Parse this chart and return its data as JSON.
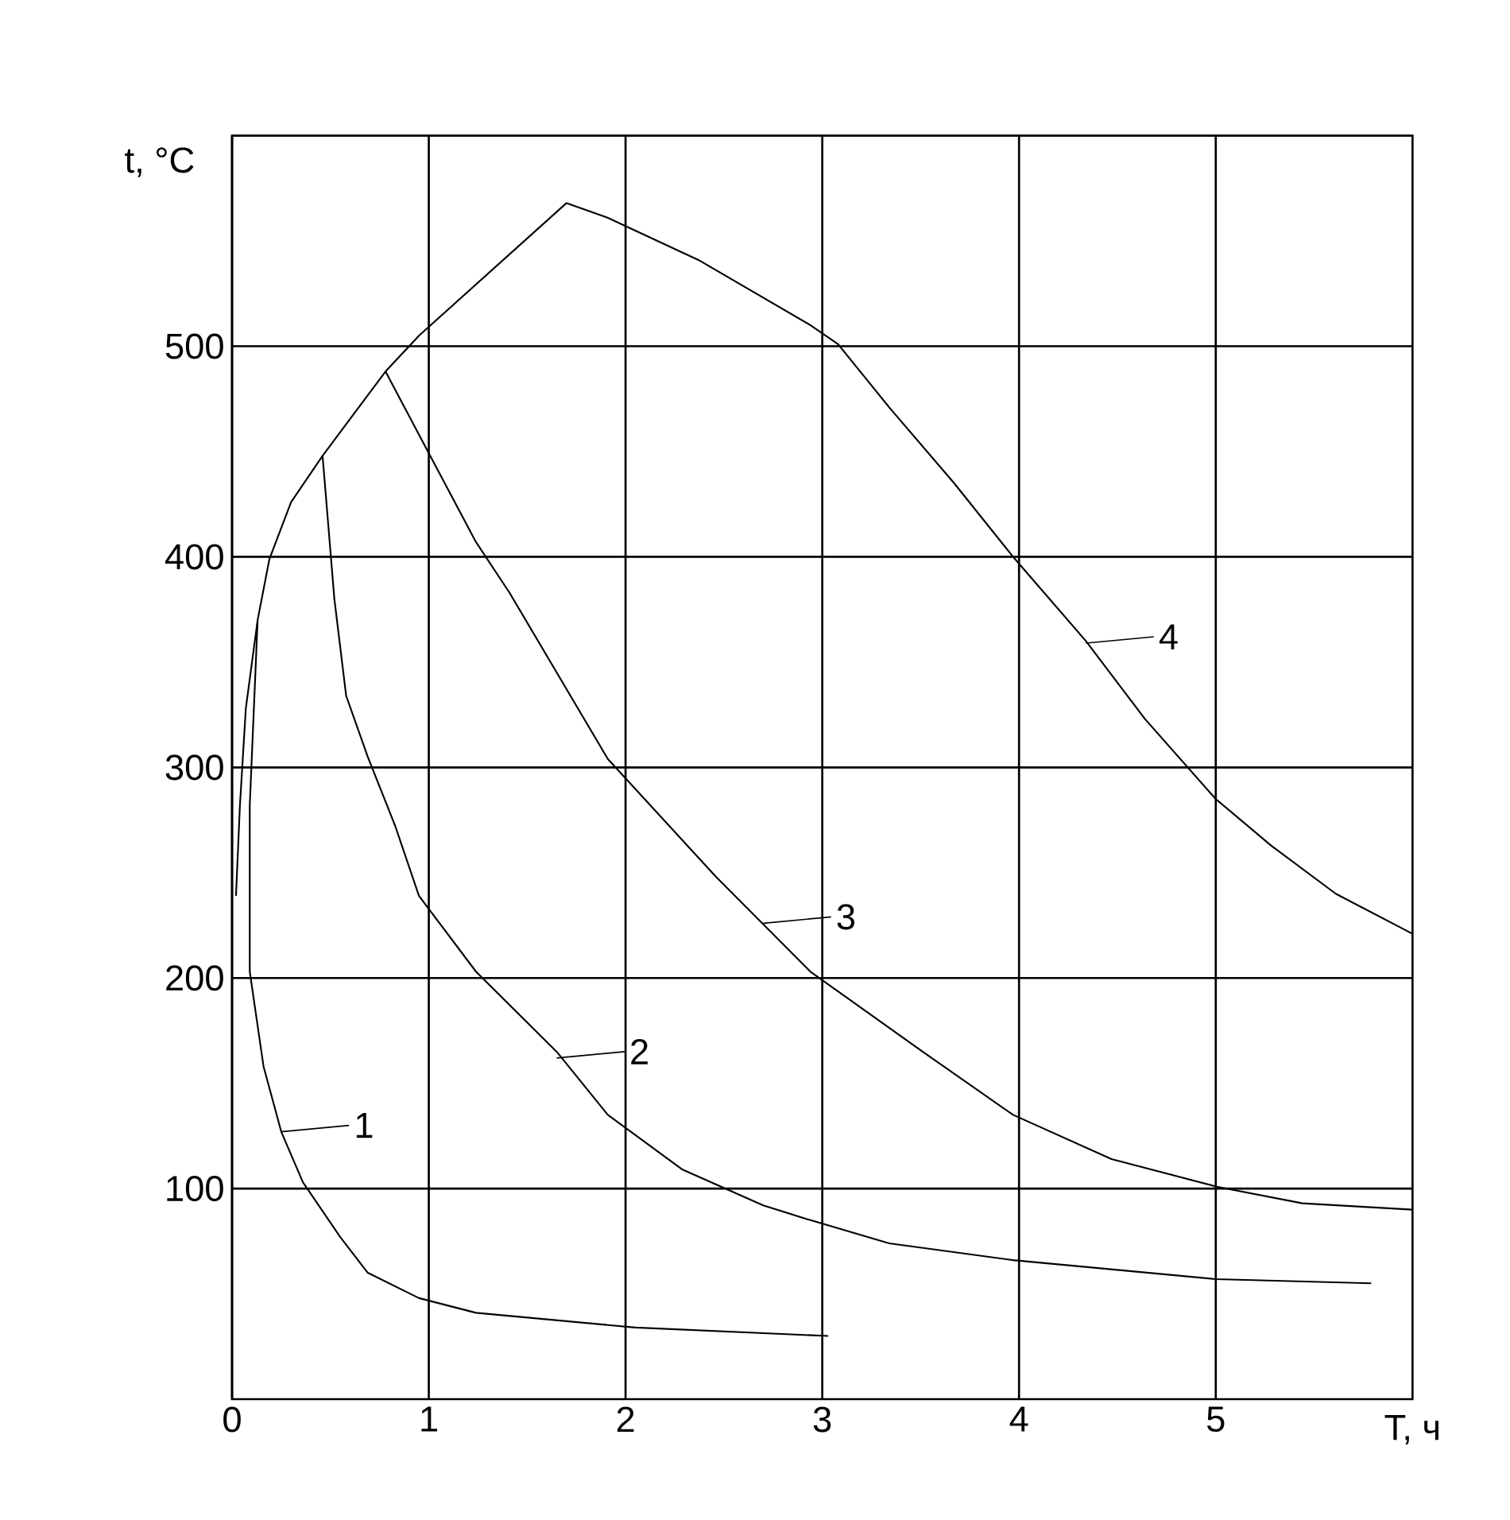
{
  "chart_data": {
    "type": "line",
    "xlabel": "T, ч",
    "ylabel": "t, °C",
    "xlim": [
      0,
      6
    ],
    "ylim": [
      0,
      600
    ],
    "xticks": [
      0,
      1,
      2,
      3,
      4,
      5
    ],
    "yticks": [
      100,
      200,
      300,
      400,
      500
    ],
    "grid": true,
    "marker": "none",
    "line_style": "solid",
    "series": [
      {
        "color": "#000000",
        "x": [
          0.02,
          0.04,
          0.07,
          0.13,
          0.19,
          0.3,
          0.46,
          0.78,
          0.95,
          1.7,
          1.91,
          2.37,
          2.94,
          3.08,
          3.34,
          3.67,
          3.97,
          4.34,
          4.64,
          5.0,
          5.28,
          5.61,
          6.0
        ],
        "values": [
          239,
          282,
          328,
          370,
          399,
          426,
          448,
          488,
          505,
          568,
          561,
          541,
          510,
          501,
          471,
          435,
          400,
          360,
          323,
          285,
          263,
          240,
          221
        ]
      },
      {
        "color": "#000000",
        "x": [
          0.13,
          0.09,
          0.09,
          0.16,
          0.25,
          0.36,
          0.55,
          0.69,
          0.95,
          1.24,
          2.05,
          3.03
        ],
        "values": [
          370,
          282,
          203,
          158,
          127,
          103,
          77,
          60,
          48,
          41,
          34,
          30
        ]
      },
      {
        "color": "#000000",
        "x": [
          0.46,
          0.52,
          0.58,
          0.69,
          0.83,
          0.95,
          1.24,
          1.65,
          1.91,
          2.29,
          2.7,
          2.94,
          3.34,
          3.97,
          5.0,
          5.79
        ],
        "values": [
          448,
          380,
          334,
          305,
          272,
          239,
          203,
          165,
          135,
          109,
          92,
          85,
          74,
          66,
          57,
          55
        ]
      },
      {
        "color": "#000000",
        "x": [
          0.78,
          0.95,
          1.24,
          1.41,
          1.91,
          2.46,
          2.94,
          3.51,
          3.97,
          4.47,
          5.0,
          5.44,
          6.0
        ],
        "values": [
          488,
          458,
          407,
          383,
          304,
          248,
          203,
          165,
          135,
          114,
          101,
          93,
          90
        ]
      }
    ],
    "annotations": [
      {
        "text": "1",
        "x": 0.25,
        "y": 127
      },
      {
        "text": "2",
        "x": 1.65,
        "y": 162
      },
      {
        "text": "3",
        "x": 2.7,
        "y": 226
      },
      {
        "text": "4",
        "x": 4.34,
        "y": 359
      }
    ]
  }
}
